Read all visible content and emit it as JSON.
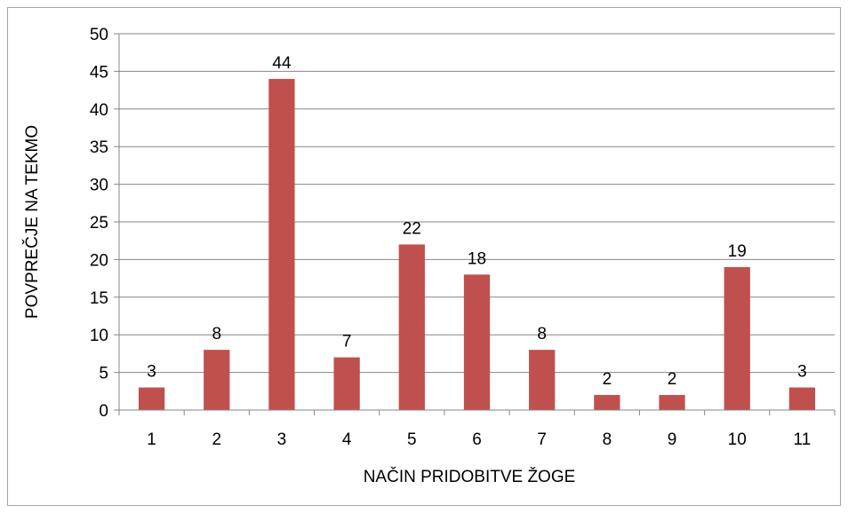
{
  "chart_data": {
    "type": "bar",
    "title": "",
    "xlabel": "NAČIN PRIDOBITVE ŽOGE",
    "ylabel": "POVPREČJE NA TEKMO",
    "categories": [
      "1",
      "2",
      "3",
      "4",
      "5",
      "6",
      "7",
      "8",
      "9",
      "10",
      "11"
    ],
    "values": [
      3,
      8,
      44,
      7,
      22,
      18,
      8,
      2,
      2,
      19,
      3
    ],
    "ylim": [
      0,
      50
    ],
    "yticks": [
      0,
      5,
      10,
      15,
      20,
      25,
      30,
      35,
      40,
      45,
      50
    ],
    "grid": true,
    "legend": "none",
    "data_labels": true,
    "bar_color": "#c0504d"
  }
}
